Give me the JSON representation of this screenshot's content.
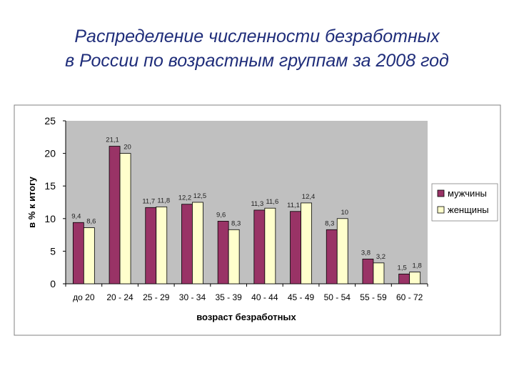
{
  "slide": {
    "title_line1": "Распределение численности безработных",
    "title_line2": "в России по возрастным группам за 2008 год"
  },
  "chart_data": {
    "type": "bar",
    "title": "",
    "xlabel": "возраст безработных",
    "ylabel": "в % к итогу",
    "ylim": [
      0,
      25
    ],
    "yticks": [
      0,
      5,
      10,
      15,
      20,
      25
    ],
    "grid": false,
    "legend_position": "right",
    "categories": [
      "до 20",
      "20 - 24",
      "25 - 29",
      "30 - 34",
      "35 - 39",
      "40 - 44",
      "45 - 49",
      "50 - 54",
      "55 - 59",
      "60 - 72"
    ],
    "series": [
      {
        "name": "мужчины",
        "color": "#993366",
        "values": [
          9.4,
          21.1,
          11.7,
          12.2,
          9.6,
          11.3,
          11.1,
          8.3,
          3.8,
          1.5
        ],
        "labels": [
          "9,4",
          "21,1",
          "11,7",
          "12,2",
          "9,6",
          "11,3",
          "11,1",
          "8,3",
          "3,8",
          "1,5"
        ]
      },
      {
        "name": "женщины",
        "color": "#ffffcc",
        "values": [
          8.6,
          20,
          11.8,
          12.5,
          8.3,
          11.6,
          12.4,
          10,
          3.2,
          1.8
        ],
        "labels": [
          "8,6",
          "20",
          "11,8",
          "12,5",
          "8,3",
          "11,6",
          "12,4",
          "10",
          "3,2",
          "1,8"
        ]
      }
    ],
    "colors": {
      "plot_background": "#c0c0c0",
      "chart_border": "#808080"
    }
  }
}
